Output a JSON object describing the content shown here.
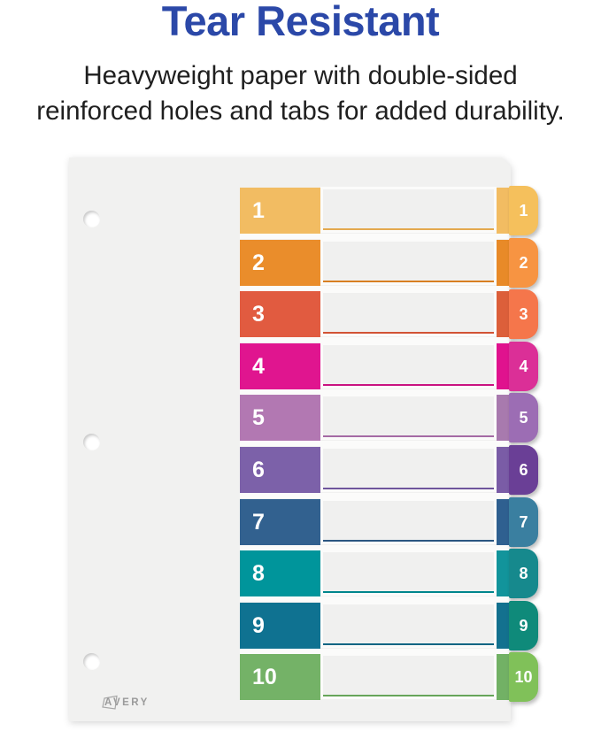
{
  "header": {
    "title": "Tear Resistant",
    "title_color": "#2B48A8",
    "subtitle_lines": [
      "Heavyweight paper with double-sided",
      "reinforced holes and tabs for added durability."
    ],
    "subtitle_color": "#1F1F1F"
  },
  "sheet": {
    "background": "#F1F1F0",
    "logo_text": "AVERY"
  },
  "rows": [
    {
      "number": "1",
      "block": "#F2BC62",
      "line": "#E4A94F",
      "strip": "#F2BC62",
      "tab": "#F5C05C"
    },
    {
      "number": "2",
      "block": "#EA8D2B",
      "line": "#D87F22",
      "strip": "#E88A28",
      "tab": "#F79442"
    },
    {
      "number": "3",
      "block": "#E15B40",
      "line": "#D25335",
      "strip": "#DC5F3A",
      "tab": "#F5764B"
    },
    {
      "number": "4",
      "block": "#E0158F",
      "line": "#C91280",
      "strip": "#E0128E",
      "tab": "#DB2F97"
    },
    {
      "number": "5",
      "block": "#B278B2",
      "line": "#A46AA4",
      "strip": "#A87AAE",
      "tab": "#9C6DB4"
    },
    {
      "number": "6",
      "block": "#7C61A9",
      "line": "#6F559C",
      "strip": "#7A5CA6",
      "tab": "#6A3F96"
    },
    {
      "number": "7",
      "block": "#32618F",
      "line": "#2B5580",
      "strip": "#2F6090",
      "tab": "#3A7FA0"
    },
    {
      "number": "8",
      "block": "#00959B",
      "line": "#00868C",
      "strip": "#12949B",
      "tab": "#16898D"
    },
    {
      "number": "9",
      "block": "#0F7291",
      "line": "#0C6583",
      "strip": "#13718F",
      "tab": "#0F8A7A"
    },
    {
      "number": "10",
      "block": "#74B267",
      "line": "#67A55A",
      "strip": "#72B165",
      "tab": "#80C159"
    }
  ]
}
